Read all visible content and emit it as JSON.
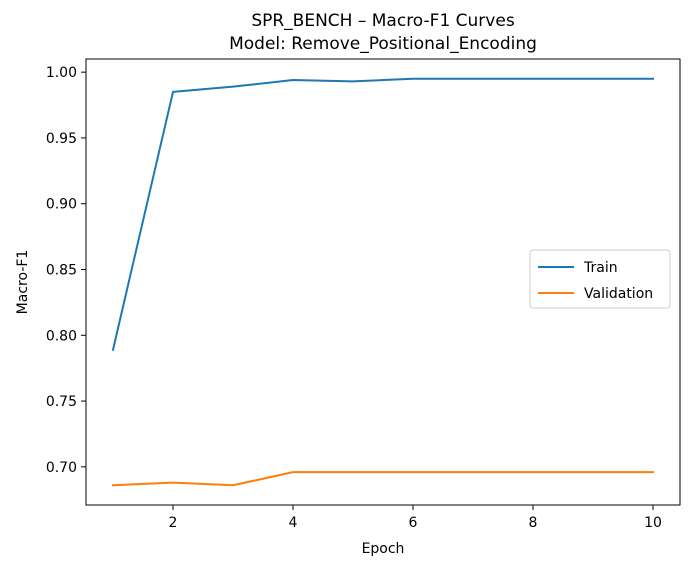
{
  "chart_data": {
    "type": "line",
    "title": "SPR_BENCH – Macro-F1 Curves",
    "subtitle": "Model: Remove_Positional_Encoding",
    "xlabel": "Epoch",
    "ylabel": "Macro-F1",
    "x": [
      1,
      2,
      3,
      4,
      5,
      6,
      7,
      8,
      9,
      10
    ],
    "xlim": [
      0.55,
      10.45
    ],
    "ylim": [
      0.671,
      1.01
    ],
    "xticks": [
      2,
      4,
      6,
      8,
      10
    ],
    "yticks": [
      0.7,
      0.75,
      0.8,
      0.85,
      0.9,
      0.95,
      1.0
    ],
    "xtick_labels": [
      "2",
      "4",
      "6",
      "8",
      "10"
    ],
    "ytick_labels": [
      "0.70",
      "0.75",
      "0.80",
      "0.85",
      "0.90",
      "0.95",
      "1.00"
    ],
    "grid": false,
    "legend_position": "center-right",
    "series": [
      {
        "name": "Train",
        "color": "#1f77b4",
        "values": [
          0.789,
          0.985,
          0.989,
          0.994,
          0.993,
          0.995,
          0.995,
          0.995,
          0.995,
          0.995
        ]
      },
      {
        "name": "Validation",
        "color": "#ff7f0e",
        "values": [
          0.686,
          0.688,
          0.686,
          0.696,
          0.696,
          0.696,
          0.696,
          0.696,
          0.696,
          0.696
        ]
      }
    ]
  }
}
